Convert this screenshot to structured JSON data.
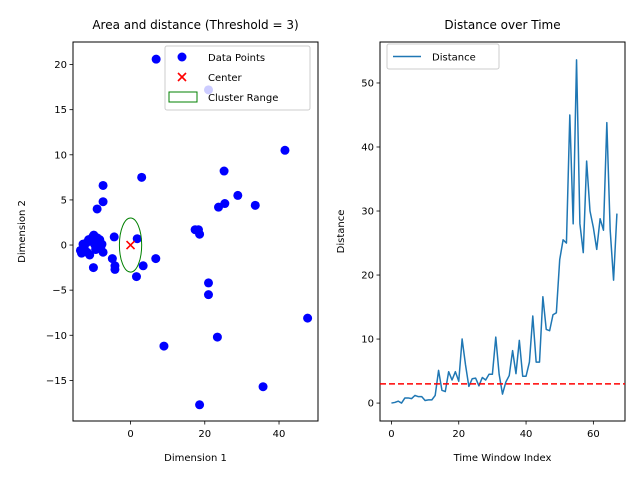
{
  "chart_data": [
    {
      "type": "scatter",
      "title": "Area and distance (Threshold = 3)",
      "xlabel": "Dimension 1",
      "ylabel": "Dimension 2",
      "xlim": [
        -15.5,
        50.5
      ],
      "ylim": [
        -19.5,
        22.5
      ],
      "xticks": [
        0,
        20,
        40
      ],
      "yticks": [
        -15,
        -10,
        -5,
        0,
        5,
        10,
        15,
        20
      ],
      "tick_labels_x": [
        "0",
        "20",
        "40"
      ],
      "tick_labels_y": [
        "−15",
        "−10",
        "−5",
        "0",
        "5",
        "10",
        "15",
        "20"
      ],
      "legend_position": "top-right",
      "legend": [
        {
          "label": "Data Points",
          "kind": "dot"
        },
        {
          "label": "Center",
          "kind": "x"
        },
        {
          "label": "Cluster Range",
          "kind": "ellipse"
        }
      ],
      "series": [
        {
          "name": "Data Points",
          "color": "#0000ff",
          "points": [
            [
              -13.5,
              -0.6
            ],
            [
              -13.2,
              -0.9
            ],
            [
              -12.8,
              0.1
            ],
            [
              -12.5,
              -0.3
            ],
            [
              -12,
              0.2
            ],
            [
              -11.7,
              -0.8
            ],
            [
              -11.3,
              0.6
            ],
            [
              -11,
              -1.1
            ],
            [
              -10.6,
              0.4
            ],
            [
              -10.2,
              0.9
            ],
            [
              -9.9,
              1.1
            ],
            [
              -9.6,
              0.0
            ],
            [
              -9.4,
              -0.5
            ],
            [
              -9.0,
              0.8
            ],
            [
              -8.7,
              0.2
            ],
            [
              -8.3,
              0.6
            ],
            [
              -8.0,
              -0.2
            ],
            [
              -7.7,
              0.1
            ],
            [
              -7.4,
              -0.8
            ],
            [
              -10.0,
              -2.5
            ],
            [
              -9.0,
              4.0
            ],
            [
              -7.4,
              6.6
            ],
            [
              -7.4,
              4.8
            ],
            [
              -4.9,
              -1.5
            ],
            [
              -4.4,
              0.9
            ],
            [
              -4.2,
              -2.7
            ],
            [
              -4.2,
              -2.3
            ],
            [
              1.8,
              0.7
            ],
            [
              1.6,
              -3.5
            ],
            [
              3.0,
              7.5
            ],
            [
              3.4,
              -2.3
            ],
            [
              6.8,
              -1.5
            ],
            [
              6.9,
              20.6
            ],
            [
              9.0,
              -11.2
            ],
            [
              17.4,
              1.7
            ],
            [
              18.3,
              1.7
            ],
            [
              18.6,
              1.2
            ],
            [
              18.6,
              -17.7
            ],
            [
              21.0,
              -4.2
            ],
            [
              21.0,
              -5.5
            ],
            [
              21.0,
              17.2
            ],
            [
              23.4,
              -10.2
            ],
            [
              23.7,
              4.2
            ],
            [
              25.2,
              8.2
            ],
            [
              25.4,
              4.6
            ],
            [
              28.9,
              5.5
            ],
            [
              33.6,
              4.4
            ],
            [
              35.7,
              -15.7
            ],
            [
              41.6,
              10.5
            ],
            [
              47.7,
              -8.1
            ]
          ]
        },
        {
          "name": "Center",
          "color": "#ff0000",
          "points": [
            [
              0,
              0
            ]
          ]
        },
        {
          "name": "Cluster Range",
          "color": "#008000",
          "ellipse": {
            "cx": 0,
            "cy": 0,
            "rx": 3.0,
            "ry": 3.0
          }
        }
      ]
    },
    {
      "type": "line",
      "title": "Distance over Time",
      "xlabel": "Time Window Index",
      "ylabel": "Distance",
      "xlim": [
        -3.4,
        69.4
      ],
      "ylim": [
        -2.8,
        56.4
      ],
      "xticks": [
        0,
        20,
        40,
        60
      ],
      "yticks": [
        0,
        10,
        20,
        30,
        40,
        50
      ],
      "tick_labels_x": [
        "0",
        "20",
        "40",
        "60"
      ],
      "tick_labels_y": [
        "0",
        "10",
        "20",
        "30",
        "40",
        "50"
      ],
      "legend_position": "top-left",
      "legend": [
        {
          "label": "Distance",
          "kind": "line"
        }
      ],
      "threshold": {
        "value": 3,
        "color": "#ff0000"
      },
      "series": [
        {
          "name": "Distance",
          "color": "#1f77b4",
          "x": [
            0,
            1,
            2,
            3,
            4,
            5,
            6,
            7,
            8,
            9,
            10,
            11,
            12,
            13,
            14,
            15,
            16,
            17,
            18,
            19,
            20,
            21,
            22,
            23,
            24,
            25,
            26,
            27,
            28,
            29,
            30,
            31,
            32,
            33,
            34,
            35,
            36,
            37,
            38,
            39,
            40,
            41,
            42,
            43,
            44,
            45,
            46,
            47,
            48,
            49,
            50,
            51,
            52,
            53,
            54,
            55,
            56,
            57,
            58,
            59,
            60,
            61,
            62,
            63,
            64,
            65,
            66,
            67
          ],
          "values": [
            0.0,
            0.1,
            0.3,
            0.0,
            0.8,
            0.8,
            0.7,
            1.2,
            1.0,
            1.0,
            0.4,
            0.5,
            0.5,
            1.2,
            5.1,
            2.0,
            1.8,
            4.9,
            3.6,
            4.9,
            3.4,
            10.0,
            6.0,
            2.6,
            3.8,
            3.9,
            2.7,
            4.0,
            3.6,
            4.5,
            4.5,
            10.3,
            4.5,
            1.4,
            3.3,
            4.3,
            8.2,
            4.6,
            9.8,
            4.2,
            4.2,
            6.4,
            13.6,
            6.4,
            6.4,
            16.6,
            11.5,
            11.3,
            13.8,
            14.1,
            22.4,
            25.5,
            25.0,
            45.0,
            28.0,
            53.6,
            28.0,
            23.5,
            37.8,
            30.0,
            27.4,
            24.0,
            28.8,
            27.0,
            43.8,
            27.0,
            19.2,
            29.6
          ]
        }
      ]
    }
  ]
}
